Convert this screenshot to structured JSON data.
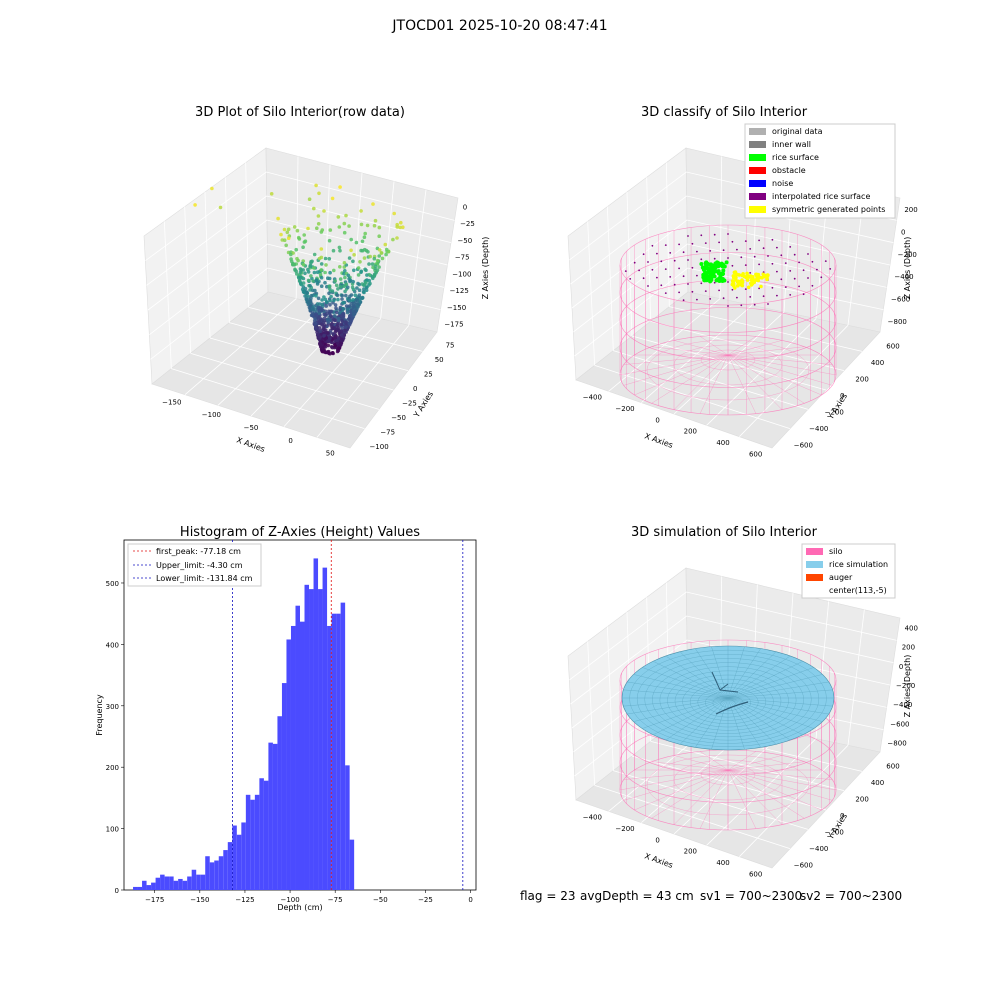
{
  "suptitle": "JTOCD01 2025-10-20 08:47:41",
  "footer": {
    "flag": "flag = 23",
    "avg_depth": "avgDepth = 43 cm",
    "sv1": "sv1 = 700~2300",
    "sv2": "sv2 = 700~2300"
  },
  "colors": {
    "histogram": "#4b4bff",
    "first_peak": "#e01010",
    "limits": "#1010c0",
    "silo": "#ff69b4",
    "rice_simulation": "#87ceeb",
    "auger": "#ff4500",
    "rice_surface": "#00ff00",
    "obstacle": "#ff0000",
    "noise": "#0000ff",
    "interpolated": "#800080",
    "symmetric": "#ffff00",
    "original": "#b0b0b0",
    "inner_wall": "#808080"
  },
  "chart_data": [
    {
      "type": "scatter",
      "title": "3D Plot of Silo Interior(row data)",
      "xlabel": "X Axies",
      "ylabel": "Y Axies",
      "zlabel": "Z Axies (Depth)",
      "x_ticks": [
        "−150",
        "−100",
        "−50",
        "0",
        "50"
      ],
      "y_ticks": [
        "75",
        "50",
        "25",
        "0",
        "−25",
        "−50",
        "−75",
        "−100"
      ],
      "z_ticks": [
        "0",
        "−25",
        "−50",
        "−75",
        "−100",
        "−125",
        "−150",
        "−175"
      ],
      "xlim": [
        -175,
        75
      ],
      "ylim": [
        -110,
        90
      ],
      "zlim": [
        -190,
        10
      ],
      "colormap": "viridis (by depth)"
    },
    {
      "type": "scatter",
      "title": "3D classify of Silo Interior",
      "xlabel": "X Axies",
      "ylabel": "Y Axies",
      "zlabel": "Z Axies (Depth)",
      "x_ticks": [
        "−400",
        "−200",
        "0",
        "200",
        "400",
        "600"
      ],
      "y_ticks": [
        "600",
        "400",
        "200",
        "0",
        "−200",
        "−400",
        "−600"
      ],
      "z_ticks": [
        "200",
        "0",
        "−200",
        "−400",
        "−600",
        "−800"
      ],
      "zlim": [
        -900,
        300
      ],
      "legend": [
        "original data",
        "inner wall",
        "rice surface",
        "obstacle",
        "noise",
        "interpolated rice surface",
        "symmetric generated points"
      ],
      "legend_location": "upper right"
    },
    {
      "type": "bar",
      "title": "Histogram of Z-Axies (Height) Values",
      "xlabel": "Depth (cm)",
      "ylabel": "Frequency",
      "xlim": [
        -192,
        3
      ],
      "ylim": [
        0,
        570
      ],
      "x_ticks": [
        -175,
        -150,
        -125,
        -100,
        -75,
        -50,
        -25,
        0
      ],
      "y_ticks": [
        0,
        100,
        200,
        300,
        400,
        500
      ],
      "bin_start": -187,
      "bin_width": 2.5,
      "values": [
        5,
        5,
        15,
        8,
        12,
        20,
        25,
        22,
        22,
        15,
        18,
        15,
        22,
        33,
        25,
        25,
        55,
        45,
        48,
        55,
        65,
        78,
        105,
        90,
        110,
        155,
        147,
        155,
        182,
        178,
        240,
        238,
        283,
        337,
        408,
        430,
        463,
        437,
        497,
        490,
        540,
        490,
        525,
        430,
        450,
        450,
        468,
        203,
        82
      ],
      "vlines": [
        {
          "label": "first_peak: -77.18 cm",
          "x": -77.18,
          "color": "#e01010"
        },
        {
          "label": "Upper_limit: -4.30 cm",
          "x": -4.3,
          "color": "#1010c0"
        },
        {
          "label": "Lower_limit: -131.84 cm",
          "x": -131.84,
          "color": "#1010c0"
        }
      ],
      "legend_location": "upper left"
    },
    {
      "type": "scatter",
      "title": "3D simulation of Silo Interior",
      "xlabel": "X Axies",
      "ylabel": "Y Axies",
      "zlabel": "Z Axies (Depth)",
      "x_ticks": [
        "−400",
        "−200",
        "0",
        "200",
        "400",
        "600"
      ],
      "y_ticks": [
        "600",
        "400",
        "200",
        "0",
        "−200",
        "−400",
        "−600"
      ],
      "z_ticks": [
        "400",
        "200",
        "0",
        "−200",
        "−400",
        "−600",
        "−800"
      ],
      "legend": [
        "silo",
        "rice simulation",
        "auger",
        "center(113,-5)"
      ],
      "legend_location": "upper right"
    }
  ]
}
